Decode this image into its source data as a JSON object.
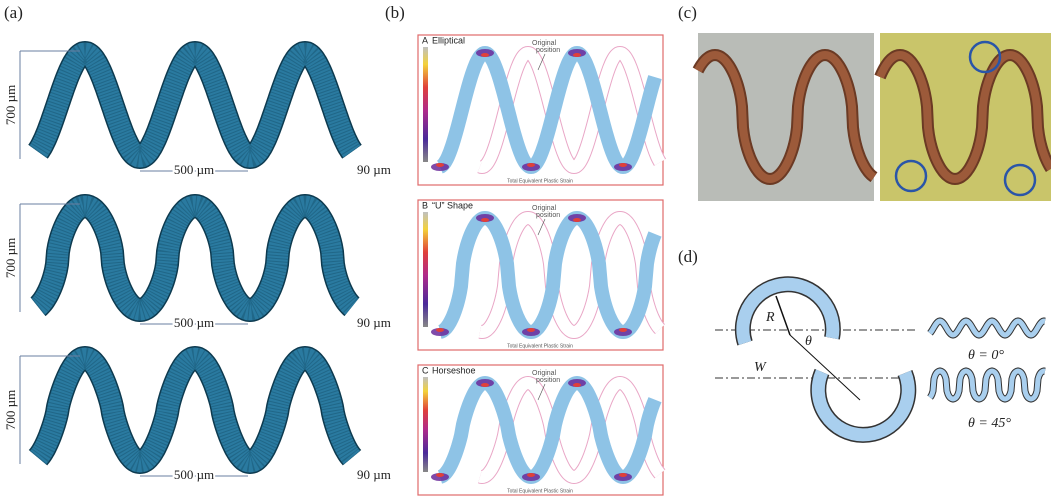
{
  "panel_labels": [
    "(a)",
    "(b)",
    "(c)",
    "(d)"
  ],
  "a": {
    "rows": [
      {
        "height": "700 µm",
        "thickness": "90 µm",
        "period": "500 µm"
      },
      {
        "height": "700 µm",
        "thickness": "90 µm",
        "period": "500 µm"
      },
      {
        "height": "700 µm",
        "thickness": "90 µm",
        "period": "500 µm"
      }
    ]
  },
  "b": {
    "panels": [
      {
        "letter": "A",
        "title": "Elliptical",
        "annotation": [
          "Original",
          "position"
        ],
        "footer": "Total Equivalent Plastic Strain"
      },
      {
        "letter": "B",
        "title": "“U” Shape",
        "annotation": [
          "Original",
          "position"
        ],
        "footer": "Total Equivalent Plastic Strain"
      },
      {
        "letter": "C",
        "title": "Horseshoe",
        "annotation": [
          "Original",
          "position"
        ],
        "footer": "Total Equivalent Plastic Strain"
      }
    ]
  },
  "d": {
    "radius": "R",
    "angle": "θ",
    "width": "W",
    "cases": [
      "θ = 0°",
      "θ = 45°"
    ]
  }
}
